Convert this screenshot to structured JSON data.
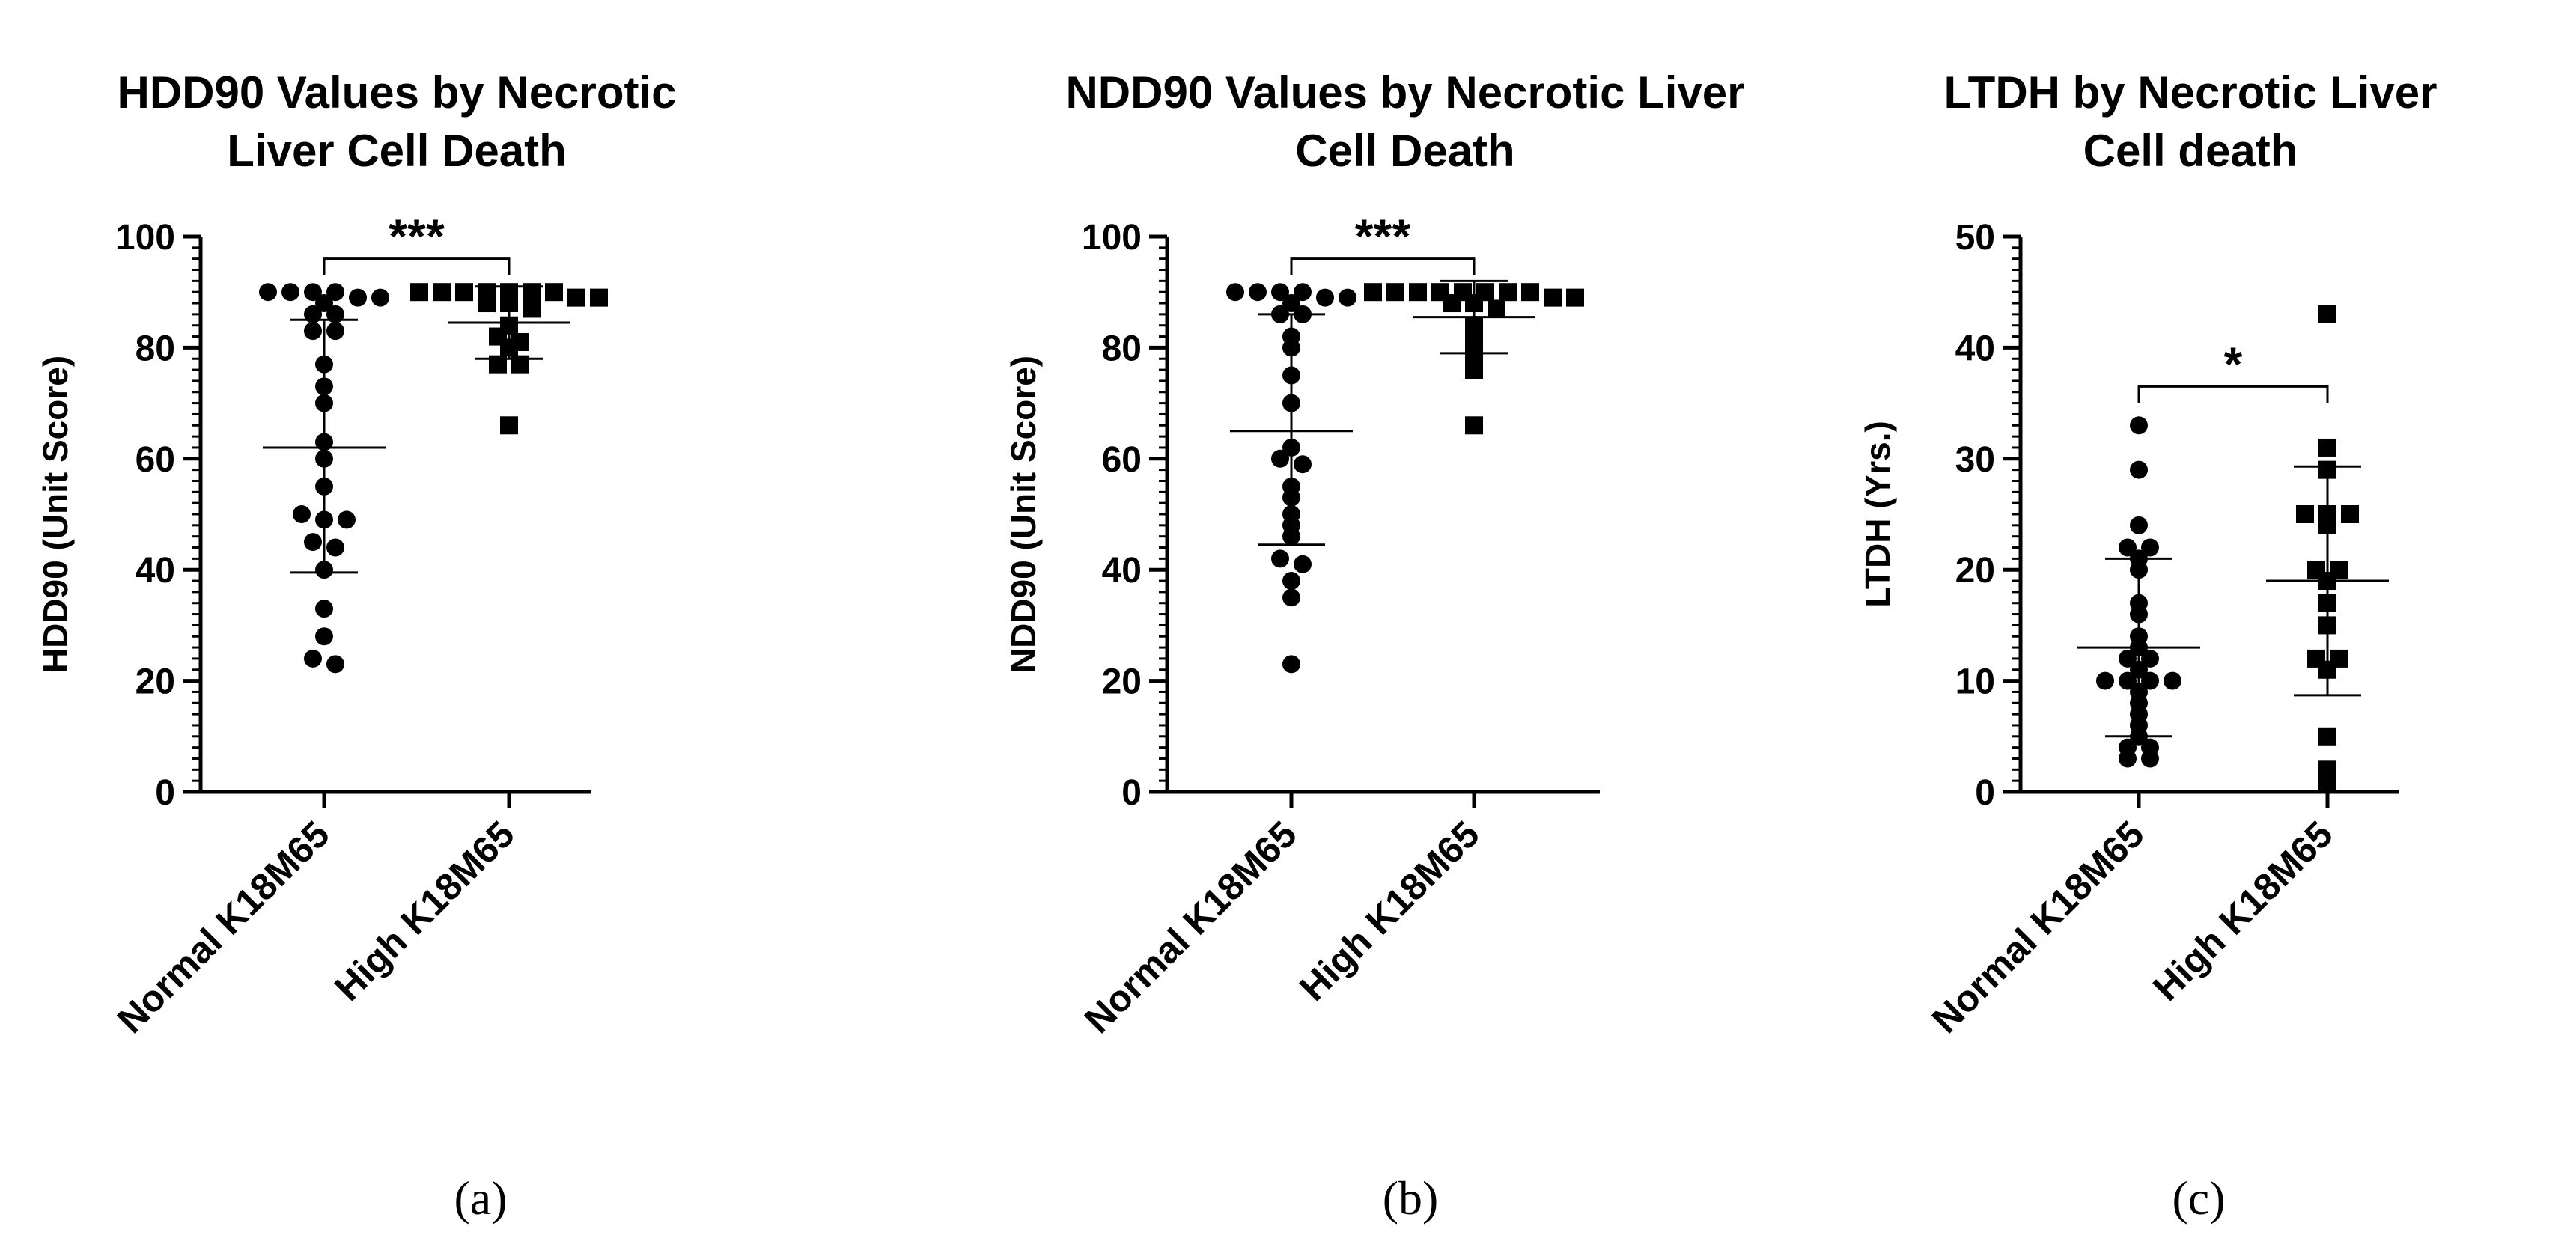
{
  "chart_data": [
    {
      "type": "scatter",
      "title_lines": [
        "HDD90 Values by Necrotic",
        "Liver Cell Death"
      ],
      "ylabel": "HDD90 (Unit Score)",
      "ylim": [
        0,
        100
      ],
      "yticks": [
        "0",
        "20",
        "40",
        "60",
        "80",
        "100"
      ],
      "categories": [
        "Normal K18M65",
        "High K18M65"
      ],
      "significance": "***",
      "caption": "(a)",
      "series": [
        {
          "name": "Normal K18M65",
          "marker": "circle",
          "mean": 62,
          "sd_low": 39.5,
          "sd_high": 85,
          "values": [
            90,
            90,
            90,
            90,
            89,
            89,
            88,
            86,
            86,
            83,
            83,
            77,
            73,
            70,
            63,
            60,
            55,
            50,
            49,
            49,
            45,
            44,
            40,
            33,
            28,
            24,
            23
          ]
        },
        {
          "name": "High K18M65",
          "marker": "square",
          "mean": 84.5,
          "sd_low": 78,
          "sd_high": 91,
          "values": [
            90,
            90,
            90,
            90,
            90,
            90,
            90,
            89,
            89,
            88,
            88,
            87,
            84,
            82,
            81,
            80,
            77,
            77,
            66
          ]
        }
      ]
    },
    {
      "type": "scatter",
      "title_lines": [
        "NDD90 Values by Necrotic Liver",
        "Cell Death"
      ],
      "ylabel": "NDD90 (Unit Score)",
      "ylim": [
        0,
        100
      ],
      "yticks": [
        "0",
        "20",
        "40",
        "60",
        "80",
        "100"
      ],
      "categories": [
        "Normal K18M65",
        "High K18M65"
      ],
      "significance": "***",
      "caption": "(b)",
      "series": [
        {
          "name": "Normal K18M65",
          "marker": "circle",
          "mean": 65,
          "sd_low": 44.5,
          "sd_high": 86,
          "values": [
            90,
            90,
            90,
            90,
            89,
            89,
            88,
            86,
            86,
            82,
            80,
            75,
            70,
            62,
            60,
            59,
            55,
            53,
            50,
            48,
            46,
            42,
            41,
            38,
            35,
            23
          ]
        },
        {
          "name": "High K18M65",
          "marker": "square",
          "mean": 85.5,
          "sd_low": 79,
          "sd_high": 92,
          "values": [
            90,
            90,
            90,
            90,
            90,
            90,
            90,
            90,
            89,
            89,
            88,
            88,
            87,
            84,
            82,
            79,
            76,
            66
          ]
        }
      ]
    },
    {
      "type": "scatter",
      "title_lines": [
        "LTDH by Necrotic Liver",
        "Cell death"
      ],
      "ylabel": "LTDH (Yrs.)",
      "ylim": [
        0,
        50
      ],
      "yticks": [
        "0",
        "10",
        "20",
        "30",
        "40",
        "50"
      ],
      "categories": [
        "Normal K18M65",
        "High K18M65"
      ],
      "significance": "*",
      "caption": "(c)",
      "series": [
        {
          "name": "Normal K18M65",
          "marker": "circle",
          "mean": 13,
          "sd_low": 5,
          "sd_high": 21,
          "values": [
            33,
            29,
            24,
            22,
            22,
            21,
            20,
            17,
            16,
            14,
            13,
            12,
            12,
            11,
            10,
            10,
            10,
            10,
            9,
            8,
            7,
            6,
            5,
            4,
            4,
            3,
            3
          ]
        },
        {
          "name": "High K18M65",
          "marker": "square",
          "mean": 19,
          "sd_low": 8.7,
          "sd_high": 29.3,
          "values": [
            43,
            31,
            29,
            25,
            25,
            25,
            24,
            20,
            20,
            19,
            17,
            15,
            12,
            12,
            11,
            5,
            2,
            1
          ]
        }
      ]
    }
  ]
}
